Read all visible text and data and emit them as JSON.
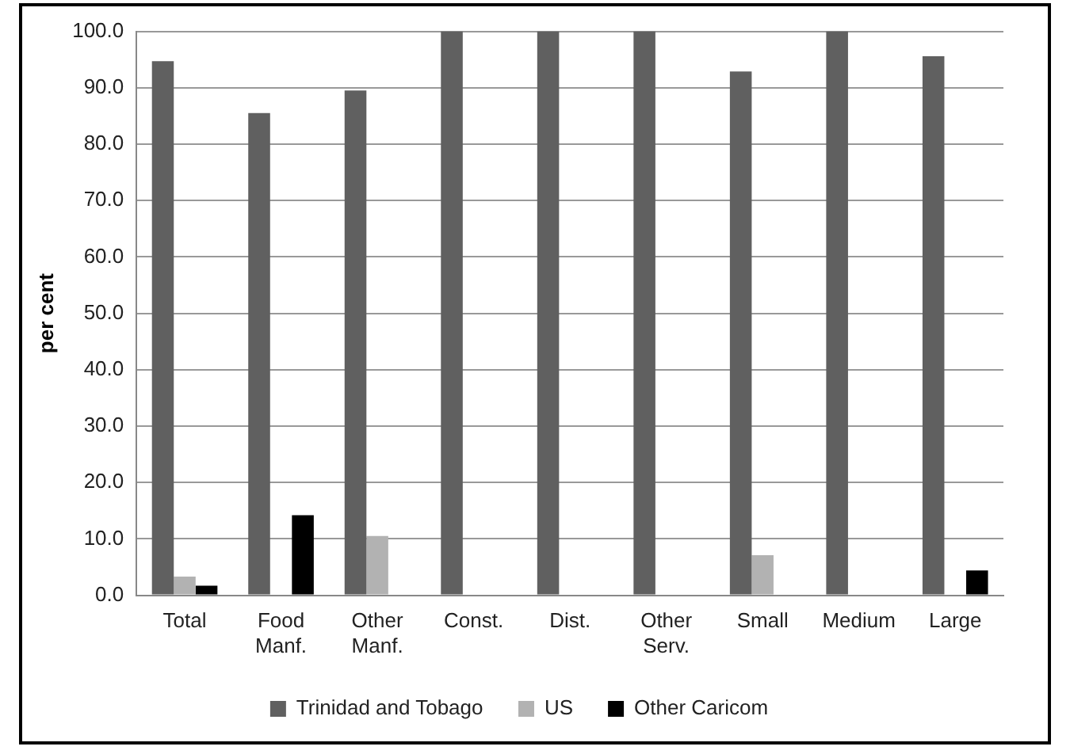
{
  "chart_data": {
    "type": "bar",
    "ylabel": "per cent",
    "categories": [
      "Total",
      "Food Manf.",
      "Other Manf.",
      "Const.",
      "Dist.",
      "Other Serv.",
      "Small",
      "Medium",
      "Large"
    ],
    "series": [
      {
        "name": "Trinidad and Tobago",
        "color": "#606060",
        "values": [
          94.7,
          85.5,
          89.5,
          100,
          100,
          100,
          92.9,
          100,
          95.6
        ]
      },
      {
        "name": "US",
        "color": "#b2b2b2",
        "values": [
          3.3,
          0,
          10.5,
          0,
          0,
          0,
          7.1,
          0,
          0
        ]
      },
      {
        "name": "Other Caricom",
        "color": "#000000",
        "values": [
          1.7,
          14.2,
          0,
          0,
          0,
          0,
          0,
          0,
          4.4
        ]
      }
    ],
    "ylim": [
      0,
      100
    ],
    "yticks": [
      {
        "value": 0,
        "label": "0.0"
      },
      {
        "value": 10,
        "label": "10.0"
      },
      {
        "value": 20,
        "label": "20.0"
      },
      {
        "value": 30,
        "label": "30.0"
      },
      {
        "value": 40,
        "label": "40.0"
      },
      {
        "value": 50,
        "label": "50.0"
      },
      {
        "value": 60,
        "label": "60.0"
      },
      {
        "value": 70,
        "label": "70.0"
      },
      {
        "value": 80,
        "label": "80.0"
      },
      {
        "value": 90,
        "label": "90.0"
      },
      {
        "value": 100,
        "label": "100.0"
      }
    ],
    "grid": "y",
    "legend": "bottom"
  }
}
